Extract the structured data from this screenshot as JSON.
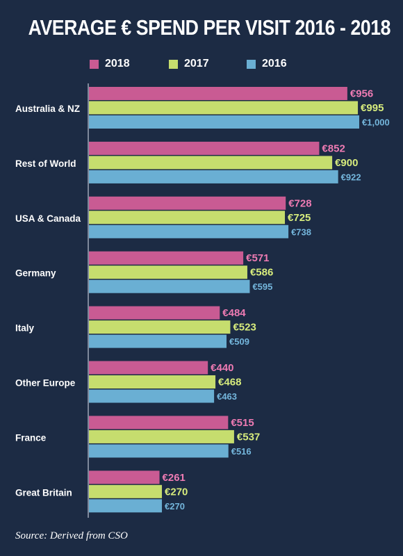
{
  "chart_data": {
    "type": "bar",
    "orientation": "horizontal",
    "title": "AVERAGE € SPEND PER VISIT 2016 - 2018",
    "categories": [
      "Australia & NZ",
      "Rest of World",
      "USA & Canada",
      "Germany",
      "Italy",
      "Other Europe",
      "France",
      "Great Britain"
    ],
    "series": [
      {
        "name": "2018",
        "color": "#c95b93",
        "label_color": "#ee7bb3",
        "values": [
          956,
          852,
          728,
          571,
          484,
          440,
          515,
          261
        ],
        "labels": [
          "€956",
          "€852",
          "€728",
          "€571",
          "€484",
          "€440",
          "€515",
          "€261"
        ]
      },
      {
        "name": "2017",
        "color": "#c6dd6e",
        "label_color": "#d7ec7d",
        "values": [
          995,
          900,
          725,
          586,
          523,
          468,
          537,
          270
        ],
        "labels": [
          "€995",
          "€900",
          "€725",
          "€586",
          "€523",
          "€468",
          "€537",
          "€270"
        ]
      },
      {
        "name": "2016",
        "color": "#6aafd3",
        "label_color": "#74b6dc",
        "values": [
          1000,
          922,
          738,
          595,
          509,
          463,
          516,
          270
        ],
        "labels": [
          "€1,000",
          "€922",
          "€738",
          "€595",
          "€509",
          "€463",
          "€516",
          "€270"
        ]
      }
    ],
    "xlim": [
      0,
      1000
    ],
    "grid": false,
    "legend_position": "top"
  },
  "source": "Source: Derived from CSO"
}
